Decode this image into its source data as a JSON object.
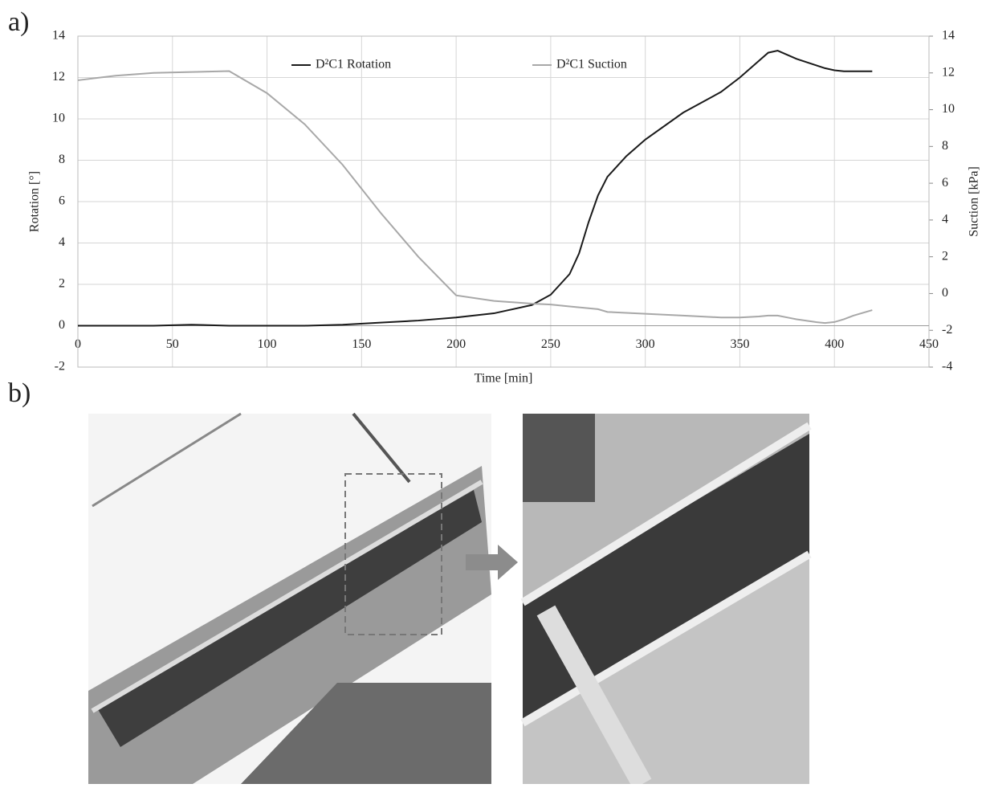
{
  "panel_labels": [
    "a)",
    "b)"
  ],
  "chart_data": {
    "type": "line",
    "x_label": "Time [min]",
    "y_label": "Rotation [°]",
    "y2_label": "Suction [kPa]",
    "x": [
      0,
      20,
      40,
      60,
      80,
      100,
      120,
      140,
      160,
      180,
      200,
      220,
      240,
      250,
      260,
      265,
      270,
      275,
      280,
      290,
      300,
      320,
      340,
      350,
      360,
      365,
      370,
      375,
      380,
      390,
      395,
      400,
      405,
      410,
      420
    ],
    "series": [
      {
        "name": "D²C1 Rotation",
        "color": "#1a1a1a",
        "values": [
          0,
          0,
          0,
          0.05,
          0,
          0,
          0,
          0.05,
          0.15,
          0.25,
          0.4,
          0.6,
          1.0,
          1.5,
          2.5,
          3.5,
          5.0,
          6.3,
          7.2,
          8.2,
          9.0,
          10.3,
          11.3,
          12.0,
          12.8,
          13.2,
          13.3,
          13.1,
          12.9,
          12.6,
          12.45,
          12.35,
          12.3,
          12.3,
          12.3
        ]
      },
      {
        "name": "D²C1 Suction",
        "color": "#a8a8a8",
        "axis": "y2",
        "values": [
          11.6,
          11.85,
          12.0,
          12.05,
          12.1,
          10.9,
          9.2,
          7.0,
          4.4,
          2.0,
          -0.1,
          -0.4,
          -0.55,
          -0.6,
          -0.7,
          -0.75,
          -0.8,
          -0.85,
          -1.0,
          -1.05,
          -1.1,
          -1.2,
          -1.3,
          -1.3,
          -1.25,
          -1.2,
          -1.2,
          -1.3,
          -1.4,
          -1.55,
          -1.6,
          -1.55,
          -1.4,
          -1.2,
          -0.9
        ]
      }
    ],
    "xlim": [
      0,
      450
    ],
    "xticks": [
      0,
      50,
      100,
      150,
      200,
      250,
      300,
      350,
      400,
      450
    ],
    "ylim": [
      -2,
      14
    ],
    "yticks": [
      -2,
      0,
      2,
      4,
      6,
      8,
      10,
      12,
      14
    ],
    "y2lim": [
      -4,
      14
    ],
    "y2ticks": [
      -4,
      -2,
      0,
      2,
      4,
      6,
      8,
      10,
      12,
      14
    ],
    "grid": true
  }
}
